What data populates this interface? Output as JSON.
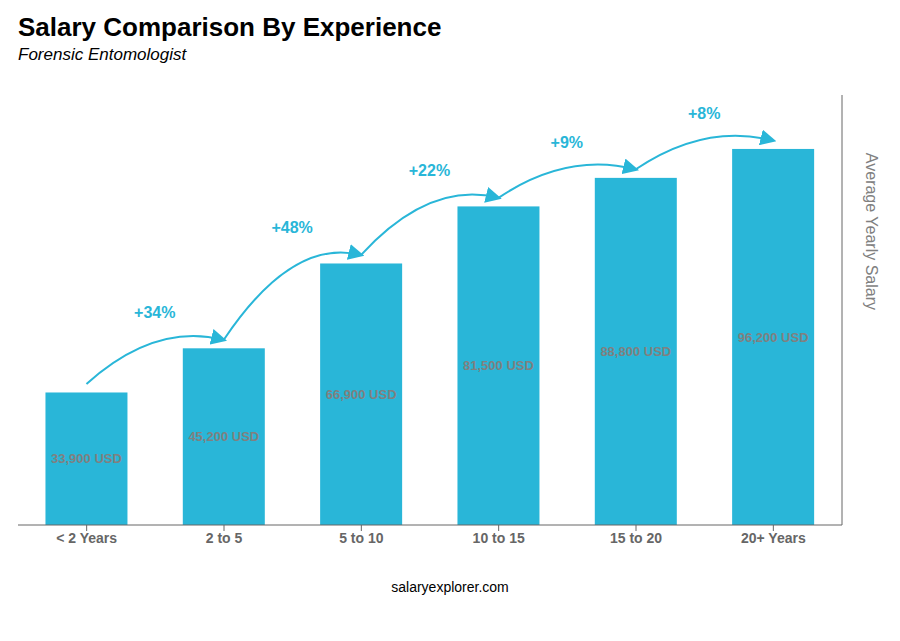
{
  "chart_data": {
    "type": "bar",
    "title": "Salary Comparison By Experience",
    "subtitle": "Forensic Entomologist",
    "categories": [
      "< 2 Years",
      "2 to 5",
      "5 to 10",
      "10 to 15",
      "15 to 20",
      "20+ Years"
    ],
    "values": [
      33900,
      45200,
      66900,
      81500,
      88800,
      96200
    ],
    "value_labels": [
      "33,900 USD",
      "45,200 USD",
      "66,900 USD",
      "81,500 USD",
      "88,800 USD",
      "96,200 USD"
    ],
    "data_labels": true,
    "color": "#29b6d8",
    "ylabel": "Average Yearly Salary",
    "ylim": [
      0,
      110000
    ],
    "tick_labels": "x",
    "annotations": [
      "+34%",
      "+48%",
      "+22%",
      "+9%",
      "+8%"
    ],
    "watermark": "salaryexplorer.com"
  }
}
